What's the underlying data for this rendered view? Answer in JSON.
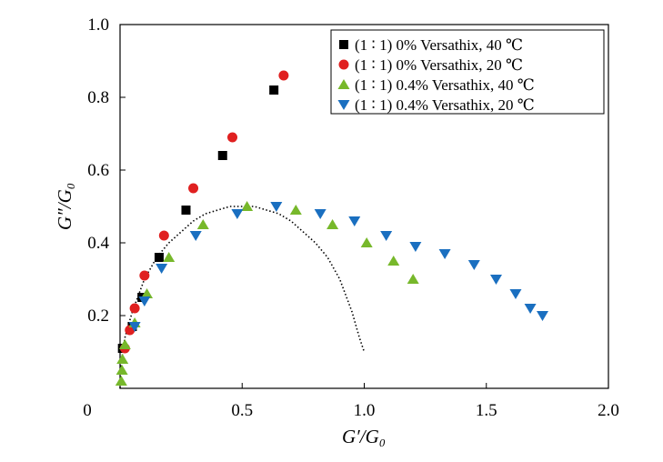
{
  "chart_data": {
    "type": "scatter",
    "xlabel": "G′/G₀",
    "ylabel": "G″/G₀",
    "xlim": [
      0,
      2.0
    ],
    "ylim": [
      0,
      1.0
    ],
    "xticks": [
      {
        "value": 0,
        "label": "0"
      },
      {
        "value": 0.5,
        "label": "0.5"
      },
      {
        "value": 1.0,
        "label": "1.0"
      },
      {
        "value": 1.5,
        "label": "1.5"
      },
      {
        "value": 2.0,
        "label": "2.0"
      }
    ],
    "yticks": [
      {
        "value": 0.2,
        "label": "0.2"
      },
      {
        "value": 0.4,
        "label": "0.4"
      },
      {
        "value": 0.6,
        "label": "0.6"
      },
      {
        "value": 0.8,
        "label": "0.8"
      },
      {
        "value": 1.0,
        "label": "1.0"
      }
    ],
    "grid": false,
    "legend_position": "top-right",
    "series": [
      {
        "name": "(1 ∶ 1) 0% Versathix, 40 ℃",
        "marker": "square",
        "color": "#000000",
        "points": [
          [
            0.01,
            0.11
          ],
          [
            0.05,
            0.17
          ],
          [
            0.09,
            0.25
          ],
          [
            0.16,
            0.36
          ],
          [
            0.27,
            0.49
          ],
          [
            0.42,
            0.64
          ],
          [
            0.63,
            0.82
          ]
        ]
      },
      {
        "name": "(1 ∶ 1) 0% Versathix, 20 ℃",
        "marker": "circle",
        "color": "#e02020",
        "points": [
          [
            0.02,
            0.11
          ],
          [
            0.04,
            0.16
          ],
          [
            0.06,
            0.22
          ],
          [
            0.1,
            0.31
          ],
          [
            0.18,
            0.42
          ],
          [
            0.3,
            0.55
          ],
          [
            0.46,
            0.69
          ],
          [
            0.67,
            0.86
          ]
        ]
      },
      {
        "name": "(1 ∶ 1) 0.4% Versathix, 40 ℃",
        "marker": "triangle-up",
        "color": "#77b82b",
        "points": [
          [
            0.005,
            0.02
          ],
          [
            0.008,
            0.05
          ],
          [
            0.01,
            0.08
          ],
          [
            0.02,
            0.12
          ],
          [
            0.06,
            0.18
          ],
          [
            0.11,
            0.26
          ],
          [
            0.2,
            0.36
          ],
          [
            0.34,
            0.45
          ],
          [
            0.52,
            0.5
          ],
          [
            0.72,
            0.49
          ],
          [
            0.87,
            0.45
          ],
          [
            1.01,
            0.4
          ],
          [
            1.12,
            0.35
          ],
          [
            1.2,
            0.3
          ]
        ]
      },
      {
        "name": "(1 ∶ 1) 0.4% Versathix, 20 ℃",
        "marker": "triangle-down",
        "color": "#1a6fc0",
        "points": [
          [
            0.06,
            0.17
          ],
          [
            0.1,
            0.24
          ],
          [
            0.17,
            0.33
          ],
          [
            0.31,
            0.42
          ],
          [
            0.48,
            0.48
          ],
          [
            0.64,
            0.5
          ],
          [
            0.82,
            0.48
          ],
          [
            0.96,
            0.46
          ],
          [
            1.09,
            0.42
          ],
          [
            1.21,
            0.39
          ],
          [
            1.33,
            0.37
          ],
          [
            1.45,
            0.34
          ],
          [
            1.54,
            0.3
          ],
          [
            1.62,
            0.26
          ],
          [
            1.68,
            0.22
          ],
          [
            1.73,
            0.2
          ]
        ]
      }
    ],
    "reference_curve": {
      "style": "dotted",
      "color": "#000000",
      "points": [
        [
          0.0,
          0.0
        ],
        [
          0.005,
          0.07
        ],
        [
          0.02,
          0.14
        ],
        [
          0.05,
          0.21
        ],
        [
          0.1,
          0.3
        ],
        [
          0.15,
          0.36
        ],
        [
          0.2,
          0.4
        ],
        [
          0.25,
          0.43
        ],
        [
          0.3,
          0.46
        ],
        [
          0.35,
          0.48
        ],
        [
          0.4,
          0.49
        ],
        [
          0.45,
          0.5
        ],
        [
          0.5,
          0.5
        ],
        [
          0.55,
          0.5
        ],
        [
          0.6,
          0.49
        ],
        [
          0.65,
          0.48
        ],
        [
          0.7,
          0.46
        ],
        [
          0.75,
          0.43
        ],
        [
          0.8,
          0.4
        ],
        [
          0.85,
          0.36
        ],
        [
          0.9,
          0.3
        ],
        [
          0.95,
          0.21
        ],
        [
          0.98,
          0.14
        ],
        [
          1.0,
          0.1
        ]
      ]
    }
  }
}
